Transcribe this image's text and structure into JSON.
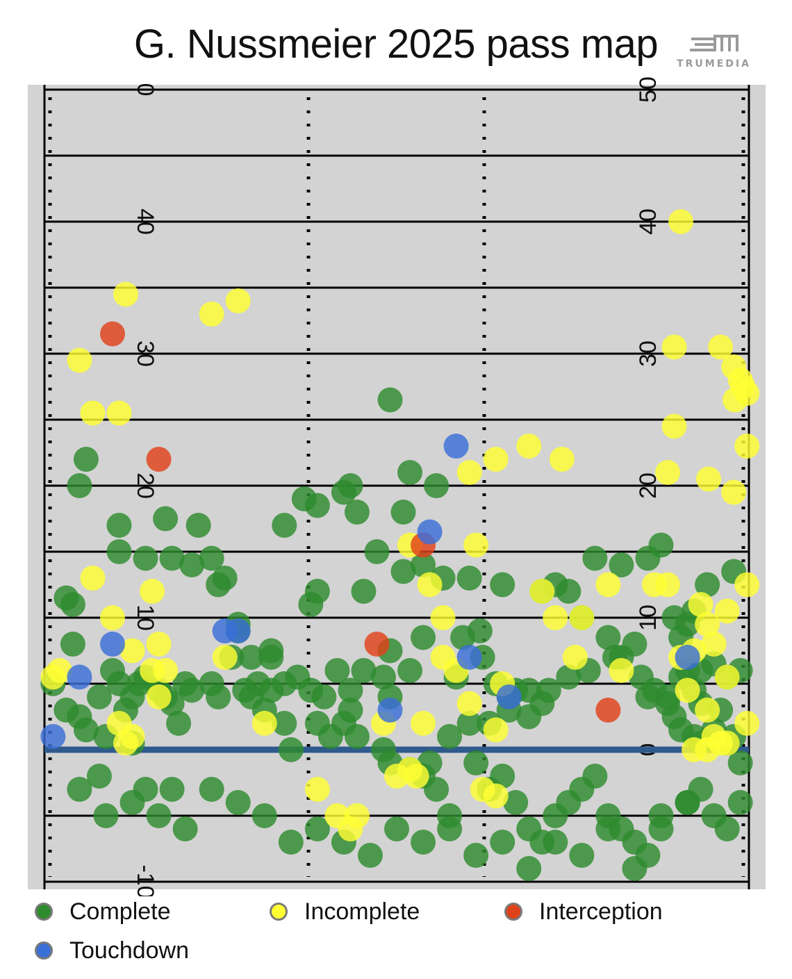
{
  "title": "G. Nussmeier 2025 pass map",
  "logo": {
    "text": "TRUMEDIA",
    "color": "#9a9a9a"
  },
  "colors": {
    "field": "#d3d3d3",
    "lines": "#000000",
    "line_of_scrimmage": "#2e5a8c",
    "Complete": "#2e8b2e",
    "Incomplete": "#ffff33",
    "Interception": "#e0421b",
    "Touchdown": "#3a6fd8"
  },
  "legend": [
    {
      "label": "Complete",
      "color": "#2e8b2e"
    },
    {
      "label": "Incomplete",
      "color": "#ffff33"
    },
    {
      "label": "Interception",
      "color": "#e0421b"
    },
    {
      "label": "Touchdown",
      "color": "#3a6fd8"
    }
  ],
  "chart_data": {
    "type": "scatter",
    "title": "G. Nussmeier 2025 pass map",
    "xlabel": "",
    "ylabel": "",
    "x_range": [
      -26.65,
      26.65
    ],
    "y_range": [
      -10.5,
      50.5
    ],
    "y_units": "yards downfield",
    "line_of_scrimmage": 0,
    "yard_labels_left": [
      "-10",
      "10",
      "20",
      "30",
      "40",
      "0"
    ],
    "yard_labels_right": [
      "0",
      "10",
      "20",
      "30",
      "40",
      "50"
    ],
    "grid": true,
    "legend_position": "bottom",
    "series": [
      {
        "name": "Complete",
        "points": [
          [
            -26.0,
            5
          ],
          [
            -25.0,
            11.5
          ],
          [
            -24.5,
            11
          ],
          [
            -22.5,
            4
          ],
          [
            -24,
            2.5
          ],
          [
            -21.5,
            6
          ],
          [
            -21,
            5
          ],
          [
            -20.5,
            3
          ],
          [
            -20,
            4
          ],
          [
            -19.5,
            5
          ],
          [
            -19,
            5.5
          ],
          [
            -18,
            4.5
          ],
          [
            -17.5,
            4
          ],
          [
            -16.5,
            2
          ],
          [
            -17,
            3.5
          ],
          [
            -16,
            5
          ],
          [
            -15.5,
            4.5
          ],
          [
            -14,
            5
          ],
          [
            -13.5,
            4
          ],
          [
            -12.5,
            7
          ],
          [
            -12,
            9
          ],
          [
            -11.5,
            4.5
          ],
          [
            -11,
            4
          ],
          [
            -10,
            3
          ],
          [
            -9.5,
            4.5
          ],
          [
            -8.5,
            2
          ],
          [
            -8,
            0
          ],
          [
            -6.5,
            4.5
          ],
          [
            -6,
            2
          ],
          [
            -5,
            1
          ],
          [
            -4.5,
            6
          ],
          [
            -3.5,
            4.5
          ],
          [
            -2.5,
            6
          ],
          [
            -1,
            5.5
          ],
          [
            -0.5,
            4
          ],
          [
            -15,
            17
          ],
          [
            -13,
            13
          ],
          [
            -14,
            14.5
          ],
          [
            -17,
            14.5
          ],
          [
            -19,
            14.5
          ],
          [
            -23.5,
            22
          ],
          [
            -15.5,
            14
          ],
          [
            -13.5,
            12.5
          ],
          [
            -12,
            9.5
          ],
          [
            -11,
            7
          ],
          [
            -10.5,
            5
          ],
          [
            -9.5,
            7
          ],
          [
            -7.5,
            5.5
          ],
          [
            -5.5,
            4
          ],
          [
            -4,
            2
          ],
          [
            -3.5,
            3
          ],
          [
            -3,
            1
          ],
          [
            -1,
            0
          ],
          [
            -0.5,
            -1
          ],
          [
            1,
            -1.5
          ],
          [
            2,
            -2
          ],
          [
            3,
            -3
          ],
          [
            4,
            -5
          ],
          [
            6,
            -1
          ],
          [
            7,
            -3
          ],
          [
            8,
            -2
          ],
          [
            9,
            -4
          ],
          [
            10,
            -6
          ],
          [
            11,
            -7
          ],
          [
            12,
            -5
          ],
          [
            13,
            -4
          ],
          [
            14,
            -3
          ],
          [
            15,
            -2
          ],
          [
            16,
            -5
          ],
          [
            17,
            -6
          ],
          [
            18,
            -7
          ],
          [
            19,
            -8
          ],
          [
            20,
            -6
          ],
          [
            22,
            -4
          ],
          [
            23,
            -3
          ],
          [
            24,
            -5
          ],
          [
            25,
            -6
          ],
          [
            26,
            -4
          ],
          [
            -24,
            -3
          ],
          [
            -22,
            -5
          ],
          [
            -20,
            -4
          ],
          [
            -18,
            -5
          ],
          [
            -16,
            -6
          ],
          [
            -14,
            -3
          ],
          [
            -12,
            -4
          ],
          [
            -10,
            -5
          ],
          [
            -8,
            -7
          ],
          [
            -6,
            -6
          ],
          [
            -4,
            -7
          ],
          [
            -2,
            -8
          ],
          [
            0,
            -6
          ],
          [
            2,
            -7
          ],
          [
            4,
            -6
          ],
          [
            6,
            -8
          ],
          [
            8,
            -7
          ],
          [
            10,
            -9
          ],
          [
            12,
            -7
          ],
          [
            14,
            -8
          ],
          [
            16,
            -6
          ],
          [
            18,
            -9
          ],
          [
            20,
            -5
          ],
          [
            22,
            -4
          ],
          [
            -22.5,
            -2
          ],
          [
            -19,
            -3
          ],
          [
            -17,
            -3
          ],
          [
            -9.5,
            7.5
          ],
          [
            -6.5,
            11
          ],
          [
            -8.5,
            17
          ],
          [
            -6,
            18.5
          ],
          [
            -7,
            19
          ],
          [
            -3.5,
            20
          ],
          [
            -4,
            19.5
          ],
          [
            -2.5,
            12
          ],
          [
            0.5,
            18
          ],
          [
            3,
            20
          ],
          [
            2,
            14
          ],
          [
            3.5,
            13
          ],
          [
            5,
            8.5
          ],
          [
            6.5,
            7
          ],
          [
            6.3,
            9
          ],
          [
            4.5,
            5.5
          ],
          [
            7.5,
            5
          ],
          [
            8.5,
            4
          ],
          [
            9,
            4.5
          ],
          [
            10,
            2.5
          ],
          [
            11,
            3.5
          ],
          [
            12,
            12.5
          ],
          [
            13,
            12
          ],
          [
            14,
            10
          ],
          [
            16,
            8.5
          ],
          [
            17,
            7
          ],
          [
            18.5,
            5.5
          ],
          [
            19.5,
            4.5
          ],
          [
            20.5,
            3.5
          ],
          [
            21,
            2.5
          ],
          [
            21.5,
            1.5
          ],
          [
            22.5,
            1
          ],
          [
            23,
            0.5
          ],
          [
            24,
            1.5
          ],
          [
            25,
            0.5
          ],
          [
            25.5,
            1
          ],
          [
            26,
            -1
          ],
          [
            24.5,
            3
          ],
          [
            23,
            3.5
          ],
          [
            22.5,
            4.5
          ],
          [
            21.5,
            5.5
          ],
          [
            22,
            6
          ],
          [
            23,
            6
          ],
          [
            24,
            6.5
          ],
          [
            25,
            5.5
          ],
          [
            26,
            6
          ],
          [
            19,
            4
          ],
          [
            20.5,
            4
          ],
          [
            18,
            8
          ],
          [
            16.5,
            7
          ],
          [
            14.5,
            6
          ],
          [
            13,
            5.5
          ],
          [
            11.5,
            4.5
          ],
          [
            10,
            4.5
          ],
          [
            8.5,
            3
          ],
          [
            7,
            2
          ],
          [
            5.5,
            2
          ],
          [
            4,
            1
          ],
          [
            2.5,
            -1
          ],
          [
            -0.5,
            7.5
          ],
          [
            1,
            6
          ],
          [
            2,
            8.5
          ],
          [
            19,
            14.5
          ],
          [
            20,
            15.5
          ],
          [
            23.5,
            12.5
          ],
          [
            22.5,
            10.5
          ],
          [
            22,
            9.5
          ],
          [
            21,
            10
          ],
          [
            21.5,
            8.5
          ],
          [
            17,
            14
          ],
          [
            15,
            14.5
          ],
          [
            11,
            12
          ],
          [
            8,
            12.5
          ],
          [
            5.5,
            13
          ],
          [
            0.5,
            13.5
          ],
          [
            -1.5,
            15
          ],
          [
            1,
            21
          ],
          [
            -3,
            18
          ],
          [
            -6,
            12
          ],
          [
            -8.5,
            5
          ],
          [
            25.5,
            13.5
          ],
          [
            -0.5,
            26.5
          ],
          [
            -24,
            20
          ],
          [
            -21,
            15
          ],
          [
            -21,
            17
          ],
          [
            -17.5,
            17.5
          ],
          [
            -24.5,
            8
          ],
          [
            -25,
            3
          ],
          [
            -23.5,
            1.5
          ],
          [
            -22,
            1
          ],
          [
            -20,
            0.5
          ]
        ]
      },
      {
        "name": "Incomplete",
        "points": [
          [
            -24,
            29.5
          ],
          [
            -23,
            25.5
          ],
          [
            -21,
            25.5
          ],
          [
            -20.5,
            34.5
          ],
          [
            -14,
            33
          ],
          [
            -12,
            34
          ],
          [
            -23,
            13
          ],
          [
            -21.5,
            10
          ],
          [
            -18.5,
            12
          ],
          [
            -20,
            7.5
          ],
          [
            -18,
            8
          ],
          [
            -18.5,
            6
          ],
          [
            -17.5,
            6
          ],
          [
            -21,
            2
          ],
          [
            -20,
            1
          ],
          [
            -26,
            5.5
          ],
          [
            -25.5,
            6
          ],
          [
            -13,
            7
          ],
          [
            -10,
            2
          ],
          [
            -6,
            -3
          ],
          [
            -1,
            2
          ],
          [
            0,
            -2
          ],
          [
            1,
            -1.5
          ],
          [
            1.5,
            -2
          ],
          [
            2,
            2
          ],
          [
            3.5,
            7
          ],
          [
            3.5,
            10
          ],
          [
            4.5,
            6
          ],
          [
            1,
            15.5
          ],
          [
            2.5,
            12.5
          ],
          [
            7.5,
            1.5
          ],
          [
            8,
            5
          ],
          [
            6,
            15.5
          ],
          [
            5.5,
            3.5
          ],
          [
            6.5,
            -3
          ],
          [
            7.5,
            -3.5
          ],
          [
            11,
            12
          ],
          [
            12,
            10
          ],
          [
            12.5,
            22
          ],
          [
            17,
            6
          ],
          [
            19.5,
            12.5
          ],
          [
            20.5,
            12.5
          ],
          [
            21,
            24.5
          ],
          [
            20.5,
            21
          ],
          [
            23,
            11
          ],
          [
            22,
            4.5
          ],
          [
            23.5,
            3
          ],
          [
            24,
            1
          ],
          [
            21.5,
            7
          ],
          [
            22.5,
            0
          ],
          [
            25,
            5.5
          ],
          [
            26.5,
            2
          ],
          [
            26.5,
            12.5
          ],
          [
            26,
            28
          ],
          [
            26.5,
            27
          ],
          [
            26.5,
            23
          ],
          [
            24.5,
            30.5
          ],
          [
            25.5,
            29
          ],
          [
            26.2,
            27.5
          ],
          [
            25.6,
            26.5
          ],
          [
            23.6,
            20.5
          ],
          [
            25.5,
            19.5
          ],
          [
            21.5,
            40
          ],
          [
            21,
            30.5
          ],
          [
            25,
            10.5
          ],
          [
            24,
            8
          ],
          [
            22.5,
            7.5
          ],
          [
            23.5,
            9.5
          ],
          [
            16,
            12.5
          ],
          [
            13.5,
            7
          ],
          [
            14,
            10
          ],
          [
            10,
            23
          ],
          [
            7.5,
            22
          ],
          [
            5.5,
            21
          ],
          [
            24.5,
            0.5
          ],
          [
            25,
            0.5
          ],
          [
            23.5,
            0
          ],
          [
            -20.5,
            0.5
          ],
          [
            -18,
            4
          ],
          [
            -4.5,
            -5
          ],
          [
            -3,
            -5
          ],
          [
            -3.5,
            -6
          ]
        ]
      },
      {
        "name": "Interception",
        "points": [
          [
            -21.5,
            31.5
          ],
          [
            -18,
            22
          ],
          [
            -1.5,
            8
          ],
          [
            2,
            15.5
          ],
          [
            16,
            3
          ]
        ]
      },
      {
        "name": "Touchdown",
        "points": [
          [
            -24,
            5.5
          ],
          [
            -21.5,
            8
          ],
          [
            -13,
            9
          ],
          [
            -12,
            9
          ],
          [
            4.5,
            23
          ],
          [
            2.5,
            16.5
          ],
          [
            5.5,
            7
          ],
          [
            8.5,
            4
          ],
          [
            22,
            7
          ],
          [
            -0.5,
            3
          ],
          [
            -26,
            1
          ]
        ]
      }
    ]
  }
}
